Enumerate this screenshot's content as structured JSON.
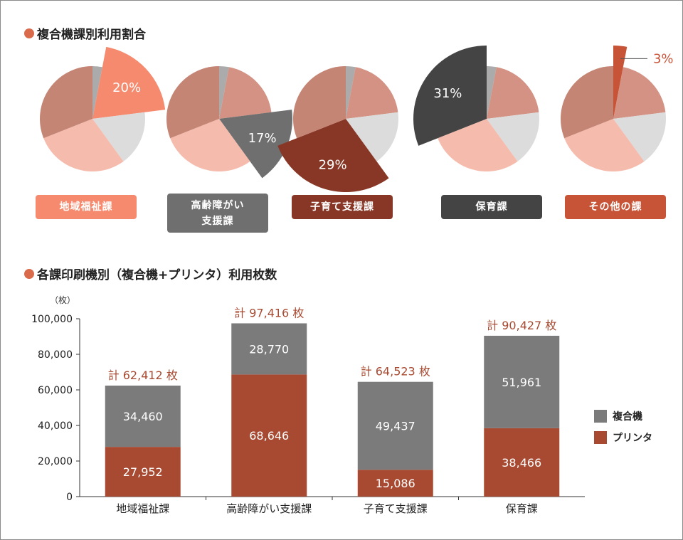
{
  "pie_section": {
    "title": "複合機課別利用割合"
  },
  "bar_section": {
    "title": "各課印刷機別（複合機+プリンタ）利用枚数"
  },
  "colors": {
    "title_dot": "#d96a4a",
    "pie_base": [
      "#ababab",
      "#d39283",
      "#dcdcdc",
      "#f5bbad",
      "#c48575"
    ],
    "printer": "#a84a31",
    "mfp": "#7b7b7b"
  },
  "chart_data": [
    {
      "type": "pie",
      "title": "複合機課別利用割合",
      "categories": [
        "地域福祉課",
        "高齢障がい支援課",
        "子育て支援課",
        "保育課",
        "その他の課"
      ],
      "values": [
        20,
        17,
        29,
        31,
        3
      ],
      "value_labels": [
        "20%",
        "17%",
        "29%",
        "31%",
        "3%"
      ],
      "highlight_colors": [
        "#f58a6e",
        "#6f6f6f",
        "#883726",
        "#444444",
        "#c85438"
      ]
    },
    {
      "type": "bar",
      "stacked": true,
      "title": "各課印刷機別（複合機+プリンタ）利用枚数",
      "unit_label": "（枚）",
      "categories": [
        "地域福祉課",
        "高齢障がい支援課",
        "子育て支援課",
        "保育課"
      ],
      "series": [
        {
          "name": "プリンタ",
          "values": [
            27952,
            68646,
            15086,
            38466
          ]
        },
        {
          "name": "複合機",
          "values": [
            34460,
            28770,
            49437,
            51961
          ]
        }
      ],
      "value_labels": {
        "printer": [
          "27,952",
          "68,646",
          "15,086",
          "38,466"
        ],
        "mfp": [
          "34,460",
          "28,770",
          "49,437",
          "51,961"
        ]
      },
      "totals": [
        "計 62,412 枚",
        "計 97,416 枚",
        "計 64,523 枚",
        "計 90,427 枚"
      ],
      "yticks": [
        "0",
        "20,000",
        "40,000",
        "60,000",
        "80,000",
        "100,000"
      ],
      "ylim": [
        0,
        100000
      ],
      "legend": [
        "複合機",
        "プリンタ"
      ],
      "legend_position": "right"
    }
  ]
}
